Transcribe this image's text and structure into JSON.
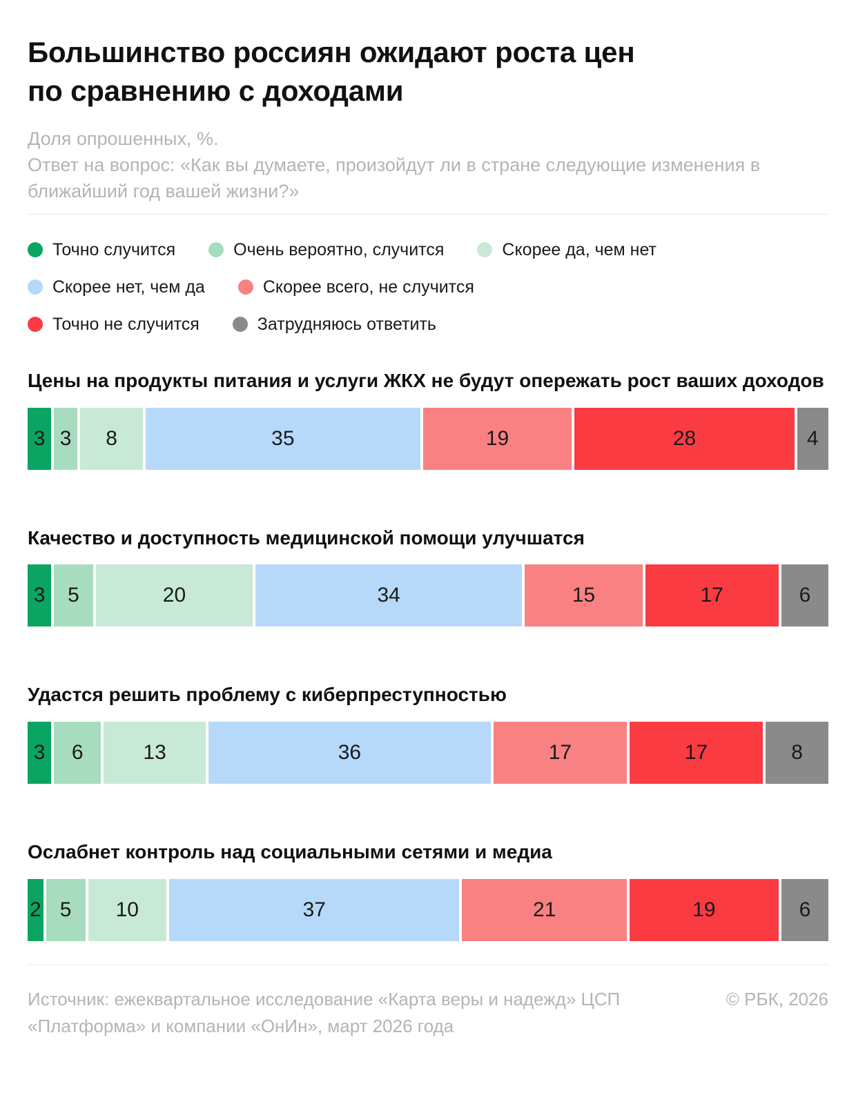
{
  "page": {
    "title_lines": [
      "Большинство россиян ожидают роста цен",
      "по сравнению с доходами"
    ],
    "subtitle_lines": [
      "Доля опрошенных, %.",
      "Ответ на вопрос: «Как вы думаете, произойдут ли в стране следующие изменения в ближайший год вашей жизни?»"
    ]
  },
  "colors": {
    "definitely_yes": "#0AA562",
    "very_likely_yes": "#A8DCBE",
    "rather_yes": "#C8E9D6",
    "rather_no": "#B6D9FA",
    "most_likely_no": "#F98181",
    "definitely_no": "#FA3B42",
    "hard_to_answer": "#8A8A8A"
  },
  "legend": {
    "rows": [
      [
        {
          "label": "Точно случится",
          "color": "#0AA562"
        },
        {
          "label": "Очень вероятно, случится",
          "color": "#A8DCBE"
        },
        {
          "label": "Скорее да, чем нет",
          "color": "#C8E9D6"
        }
      ],
      [
        {
          "label": "Скорее нет, чем да",
          "color": "#B6D9FA"
        },
        {
          "label": "Скорее всего, не случится",
          "color": "#F98181"
        }
      ],
      [
        {
          "label": "Точно не случится",
          "color": "#FA3B42"
        },
        {
          "label": "Затрудняюсь ответить",
          "color": "#8A8A8A"
        }
      ]
    ]
  },
  "chart_data": {
    "type": "bar",
    "stacked": true,
    "orientation": "horizontal",
    "unit": "%",
    "xlim": [
      0,
      100
    ],
    "grid": false,
    "legend_position": "top",
    "title": "Большинство россиян ожидают роста цен по сравнению с доходами",
    "subtitle": "Доля опрошенных, %. Ответ на вопрос: «Как вы думаете, произойдут ли в стране следующие изменения в ближайший год вашей жизни?»",
    "series": [
      "Точно случится",
      "Очень вероятно, случится",
      "Скорее да, чем нет",
      "Скорее нет, чем да",
      "Скорее всего, не случится",
      "Точно не случится",
      "Затрудняюсь ответить"
    ],
    "series_colors": [
      "#0AA562",
      "#A8DCBE",
      "#C8E9D6",
      "#B6D9FA",
      "#F98181",
      "#FA3B42",
      "#8A8A8A"
    ],
    "categories": [
      "Цены на продукты питания и услуги ЖКХ не будут опережать рост ваших доходов",
      "Качество и доступность медицинской помощи улучшатся",
      "Удастся решить проблему с киберпреступностью",
      "Ослабнет контроль над социальными сетями и медиа"
    ],
    "values": [
      [
        3,
        3,
        8,
        35,
        19,
        28,
        4
      ],
      [
        3,
        5,
        20,
        34,
        15,
        17,
        6
      ],
      [
        3,
        6,
        13,
        36,
        17,
        17,
        8
      ],
      [
        2,
        5,
        10,
        37,
        21,
        19,
        6
      ]
    ]
  },
  "footer": {
    "source": "Источник: ежеквартальное исследование «Карта веры и надежд» ЦСП «Платформа» и компании «ОнИн», март 2026 года",
    "copyright": "© РБК, 2026"
  }
}
